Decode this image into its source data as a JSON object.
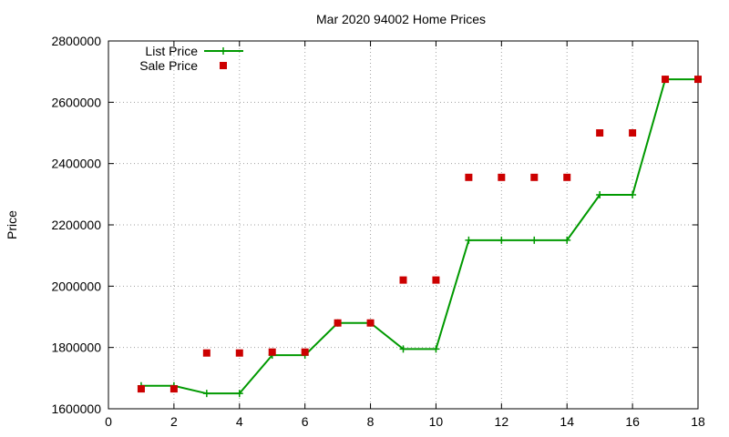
{
  "chart_data": {
    "type": "line",
    "title": "Mar 2020 94002 Home Prices",
    "xlabel": "",
    "ylabel": "Price",
    "xlim": [
      0,
      18
    ],
    "ylim": [
      1600000,
      2800000
    ],
    "xticks": [
      0,
      2,
      4,
      6,
      8,
      10,
      12,
      14,
      16,
      18
    ],
    "yticks": [
      1600000,
      1800000,
      2000000,
      2200000,
      2400000,
      2600000,
      2800000
    ],
    "grid": true,
    "legend_position": "top-left",
    "series": [
      {
        "name": "List Price",
        "style": "line-with-plus-markers",
        "color": "#009900",
        "x": [
          1,
          2,
          3,
          4,
          5,
          6,
          7,
          8,
          9,
          10,
          11,
          12,
          13,
          14,
          15,
          16,
          17,
          18
        ],
        "values": [
          1675000,
          1675000,
          1650000,
          1650000,
          1775000,
          1775000,
          1880000,
          1880000,
          1795000,
          1795000,
          2150000,
          2150000,
          2150000,
          2150000,
          2298000,
          2298000,
          2675000,
          2675000
        ]
      },
      {
        "name": "Sale Price",
        "style": "square-points",
        "color": "#cc0000",
        "x": [
          1,
          2,
          3,
          4,
          5,
          6,
          7,
          8,
          9,
          10,
          11,
          12,
          13,
          14,
          15,
          16,
          17,
          18
        ],
        "values": [
          1665000,
          1665000,
          1782000,
          1782000,
          1785000,
          1785000,
          1880000,
          1880000,
          2020000,
          2020000,
          2355000,
          2355000,
          2355000,
          2355000,
          2500000,
          2500000,
          2675000,
          2675000
        ]
      }
    ]
  }
}
